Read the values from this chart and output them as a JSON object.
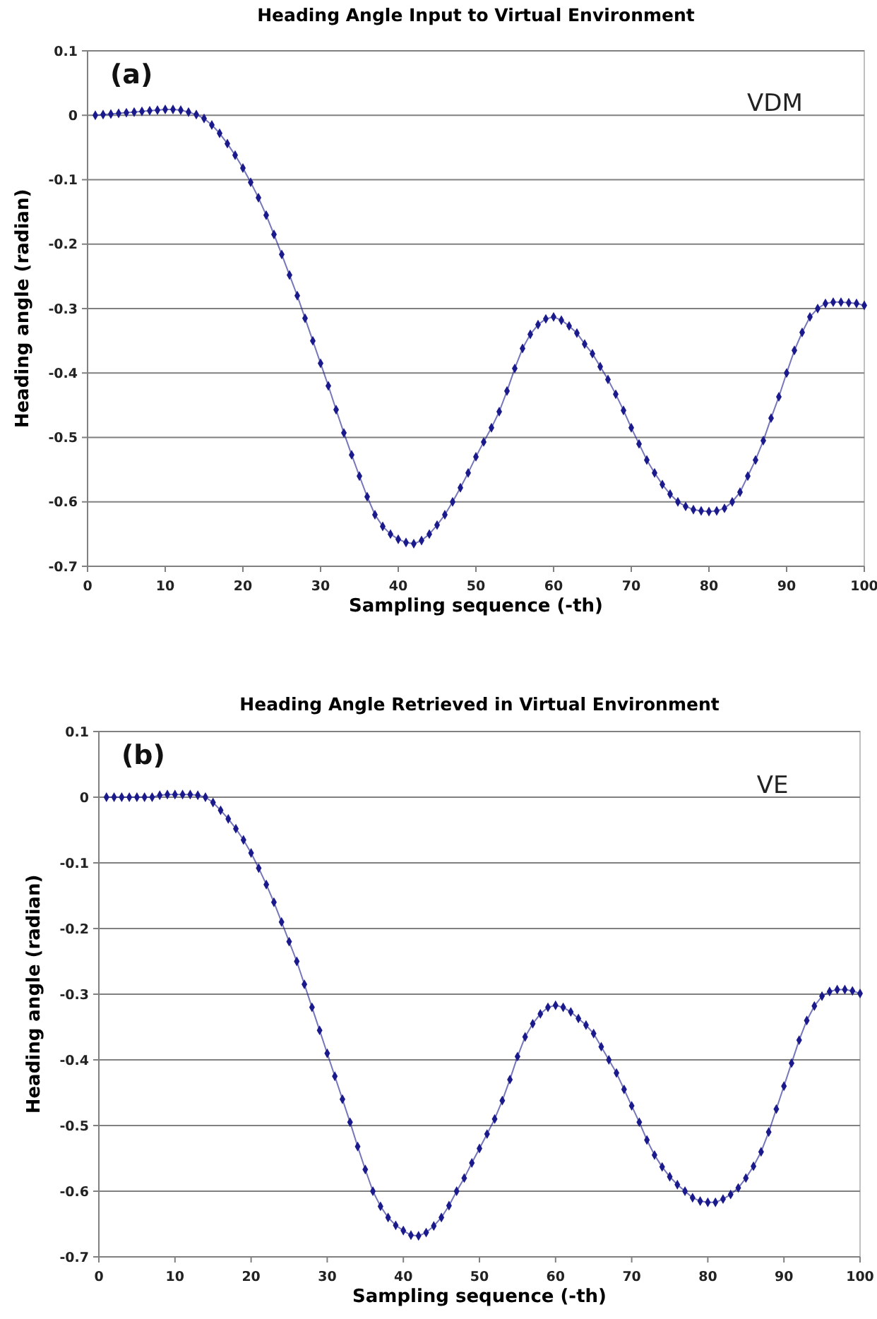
{
  "chart_data": [
    {
      "type": "line",
      "title": "Heading Angle Input to Virtual Environment",
      "xlabel": "Sampling sequence (-th)",
      "ylabel": "Heading angle (radian)",
      "annotations": [
        "(a)",
        "VDM"
      ],
      "xlim": [
        0,
        100
      ],
      "xticks": [
        0,
        10,
        20,
        30,
        40,
        50,
        60,
        70,
        80,
        90,
        100
      ],
      "ylim": [
        -0.7,
        0.1
      ],
      "yticks": [
        -0.7,
        -0.6,
        -0.5,
        -0.4,
        -0.3,
        -0.2,
        -0.1,
        0,
        0.1
      ],
      "grid": "y",
      "marker": "diamond",
      "line_style": "solid",
      "x": [
        1,
        2,
        3,
        4,
        5,
        6,
        7,
        8,
        9,
        10,
        11,
        12,
        13,
        14,
        15,
        16,
        17,
        18,
        19,
        20,
        21,
        22,
        23,
        24,
        25,
        26,
        27,
        28,
        29,
        30,
        31,
        32,
        33,
        34,
        35,
        36,
        37,
        38,
        39,
        40,
        41,
        42,
        43,
        44,
        45,
        46,
        47,
        48,
        49,
        50,
        51,
        52,
        53,
        54,
        55,
        56,
        57,
        58,
        59,
        60,
        61,
        62,
        63,
        64,
        65,
        66,
        67,
        68,
        69,
        70,
        71,
        72,
        73,
        74,
        75,
        76,
        77,
        78,
        79,
        80,
        81,
        82,
        83,
        84,
        85,
        86,
        87,
        88,
        89,
        90,
        91,
        92,
        93,
        94,
        95,
        96,
        97,
        98,
        99,
        100
      ],
      "series": [
        {
          "color": "#1a1a8c",
          "values": [
            0,
            0.001,
            0.002,
            0.003,
            0.004,
            0.005,
            0.006,
            0.007,
            0.008,
            0.009,
            0.009,
            0.008,
            0.005,
            0.001,
            -0.005,
            -0.015,
            -0.028,
            -0.044,
            -0.062,
            -0.082,
            -0.104,
            -0.128,
            -0.155,
            -0.185,
            -0.216,
            -0.248,
            -0.28,
            -0.315,
            -0.35,
            -0.385,
            -0.42,
            -0.457,
            -0.493,
            -0.527,
            -0.56,
            -0.592,
            -0.62,
            -0.638,
            -0.65,
            -0.658,
            -0.663,
            -0.665,
            -0.66,
            -0.65,
            -0.636,
            -0.62,
            -0.6,
            -0.578,
            -0.555,
            -0.53,
            -0.507,
            -0.485,
            -0.46,
            -0.428,
            -0.393,
            -0.362,
            -0.34,
            -0.325,
            -0.316,
            -0.313,
            -0.318,
            -0.327,
            -0.338,
            -0.355,
            -0.37,
            -0.39,
            -0.41,
            -0.433,
            -0.458,
            -0.485,
            -0.51,
            -0.535,
            -0.555,
            -0.573,
            -0.588,
            -0.6,
            -0.607,
            -0.612,
            -0.614,
            -0.615,
            -0.614,
            -0.61,
            -0.6,
            -0.585,
            -0.56,
            -0.535,
            -0.505,
            -0.47,
            -0.437,
            -0.4,
            -0.365,
            -0.337,
            -0.313,
            -0.3,
            -0.292,
            -0.29,
            -0.29,
            -0.291,
            -0.292,
            -0.295
          ]
        }
      ]
    },
    {
      "type": "line",
      "title": "Heading Angle Retrieved in Virtual Environment",
      "xlabel": "Sampling sequence (-th)",
      "ylabel": "Heading angle (radian)",
      "annotations": [
        "(b)",
        "VE"
      ],
      "xlim": [
        0,
        100
      ],
      "xticks": [
        0,
        10,
        20,
        30,
        40,
        50,
        60,
        70,
        80,
        90,
        100
      ],
      "ylim": [
        -0.7,
        0.1
      ],
      "yticks": [
        -0.7,
        -0.6,
        -0.5,
        -0.4,
        -0.3,
        -0.2,
        -0.1,
        0,
        0.1
      ],
      "grid": "y",
      "marker": "diamond",
      "line_style": "solid",
      "x": [
        1,
        2,
        3,
        4,
        5,
        6,
        7,
        8,
        9,
        10,
        11,
        12,
        13,
        14,
        15,
        16,
        17,
        18,
        19,
        20,
        21,
        22,
        23,
        24,
        25,
        26,
        27,
        28,
        29,
        30,
        31,
        32,
        33,
        34,
        35,
        36,
        37,
        38,
        39,
        40,
        41,
        42,
        43,
        44,
        45,
        46,
        47,
        48,
        49,
        50,
        51,
        52,
        53,
        54,
        55,
        56,
        57,
        58,
        59,
        60,
        61,
        62,
        63,
        64,
        65,
        66,
        67,
        68,
        69,
        70,
        71,
        72,
        73,
        74,
        75,
        76,
        77,
        78,
        79,
        80,
        81,
        82,
        83,
        84,
        85,
        86,
        87,
        88,
        89,
        90,
        91,
        92,
        93,
        94,
        95,
        96,
        97,
        98,
        99,
        100
      ],
      "series": [
        {
          "color": "#1a1a8c",
          "values": [
            0,
            0,
            0,
            0,
            0,
            0,
            0,
            0.003,
            0.004,
            0.004,
            0.004,
            0.004,
            0.003,
            0,
            -0.008,
            -0.02,
            -0.033,
            -0.048,
            -0.065,
            -0.085,
            -0.108,
            -0.133,
            -0.16,
            -0.19,
            -0.22,
            -0.25,
            -0.285,
            -0.32,
            -0.355,
            -0.39,
            -0.425,
            -0.46,
            -0.495,
            -0.532,
            -0.567,
            -0.6,
            -0.623,
            -0.64,
            -0.652,
            -0.66,
            -0.667,
            -0.668,
            -0.663,
            -0.653,
            -0.64,
            -0.622,
            -0.6,
            -0.58,
            -0.557,
            -0.535,
            -0.513,
            -0.49,
            -0.462,
            -0.43,
            -0.395,
            -0.365,
            -0.345,
            -0.33,
            -0.32,
            -0.317,
            -0.32,
            -0.327,
            -0.337,
            -0.347,
            -0.36,
            -0.38,
            -0.4,
            -0.42,
            -0.445,
            -0.47,
            -0.495,
            -0.522,
            -0.545,
            -0.563,
            -0.578,
            -0.59,
            -0.6,
            -0.61,
            -0.615,
            -0.617,
            -0.617,
            -0.612,
            -0.605,
            -0.595,
            -0.58,
            -0.562,
            -0.54,
            -0.51,
            -0.475,
            -0.44,
            -0.405,
            -0.37,
            -0.34,
            -0.318,
            -0.303,
            -0.296,
            -0.293,
            -0.293,
            -0.295,
            -0.299
          ]
        }
      ]
    }
  ]
}
